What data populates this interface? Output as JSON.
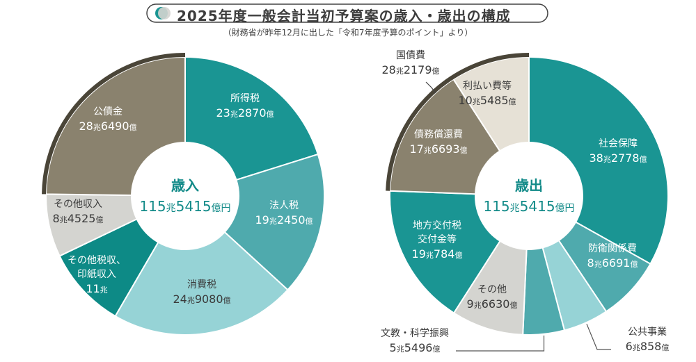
{
  "title": "2025年度一般会計当初予算案の歳入・歳出の構成",
  "source": "（財務省が昨年12月に出した「令和7年度予算のポイント」より）",
  "chart_data": [
    {
      "type": "pie",
      "donut": true,
      "center_label": "歳入",
      "center_total": "115兆5415億円",
      "total_oku": 1155415,
      "start_at": "top, clockwise",
      "slices": [
        {
          "name": "所得税",
          "value_text": "23兆2870億",
          "value_oku": 232870,
          "color": "#1a9593"
        },
        {
          "name": "法人税",
          "value_text": "19兆2450億",
          "value_oku": 192450,
          "color": "#4faaad"
        },
        {
          "name": "消費税",
          "value_text": "24兆9080億",
          "value_oku": 249080,
          "color": "#96d3d6"
        },
        {
          "name": "その他税収、印紙収入",
          "value_text": "11兆",
          "value_oku": 110000,
          "color": "#0d8a86"
        },
        {
          "name": "その他収入",
          "value_text": "8兆4525億",
          "value_oku": 84525,
          "color": "#d4d4d0"
        },
        {
          "name": "公債金",
          "value_text": "28兆6490億",
          "value_oku": 286490,
          "color": "#8a826e",
          "outer_band": true
        }
      ]
    },
    {
      "type": "pie",
      "donut": true,
      "center_label": "歳出",
      "center_total": "115兆5415億円",
      "total_oku": 1155415,
      "start_at": "top, clockwise",
      "group_labels": [
        {
          "name": "国債費",
          "value_text": "28兆2179億",
          "value_oku": 282179
        }
      ],
      "slices": [
        {
          "name": "社会保障",
          "value_text": "38兆2778億",
          "value_oku": 382778,
          "color": "#1a9593"
        },
        {
          "name": "防衛関係費",
          "value_text": "8兆6691億",
          "value_oku": 86691,
          "color": "#4faaad"
        },
        {
          "name": "公共事業",
          "value_text": "6兆858億",
          "value_oku": 60858,
          "color": "#96d3d6"
        },
        {
          "name": "文教・科学振興",
          "value_text": "5兆5496億",
          "value_oku": 55496,
          "color": "#4faaad"
        },
        {
          "name": "その他",
          "value_text": "9兆6630億",
          "value_oku": 96630,
          "color": "#d4d4d0"
        },
        {
          "name": "地方交付税交付金等",
          "value_text": "19兆784億",
          "value_oku": 190784,
          "color": "#1a9593"
        },
        {
          "name": "債務償還費",
          "value_text": "17兆6693億",
          "value_oku": 176693,
          "color": "#8a826e",
          "outer_band": true
        },
        {
          "name": "利払い費等",
          "value_text": "10兆5485億",
          "value_oku": 105485,
          "color": "#e6e1d6",
          "outer_band": true
        }
      ]
    }
  ]
}
